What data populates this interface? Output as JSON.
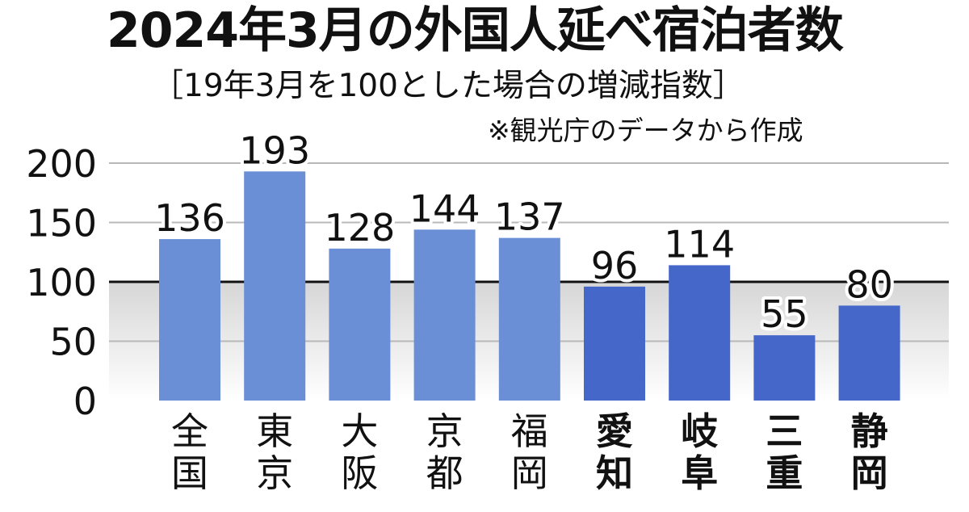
{
  "chart_data": {
    "type": "bar",
    "title": "2024年3月の外国人延べ宿泊者数",
    "subtitle": "［19年3月を100とした場合の増減指数］",
    "source": "※観光庁のデータから作成",
    "categories": [
      "全国",
      "東京",
      "大阪",
      "京都",
      "福岡",
      "愛知",
      "岐阜",
      "三重",
      "静岡"
    ],
    "values": [
      136,
      193,
      128,
      144,
      137,
      96,
      114,
      55,
      80
    ],
    "ylim": [
      0,
      200
    ],
    "yticks": [
      0,
      50,
      100,
      150,
      200
    ],
    "reference_line": 100,
    "grid": true,
    "colors": {
      "group_a": "#6b8fd6",
      "group_b": "#4567c9",
      "baseline": "#111111",
      "grid": "#b8b8b8"
    },
    "highlighted_categories": [
      "愛知",
      "岐阜",
      "三重",
      "静岡"
    ]
  }
}
